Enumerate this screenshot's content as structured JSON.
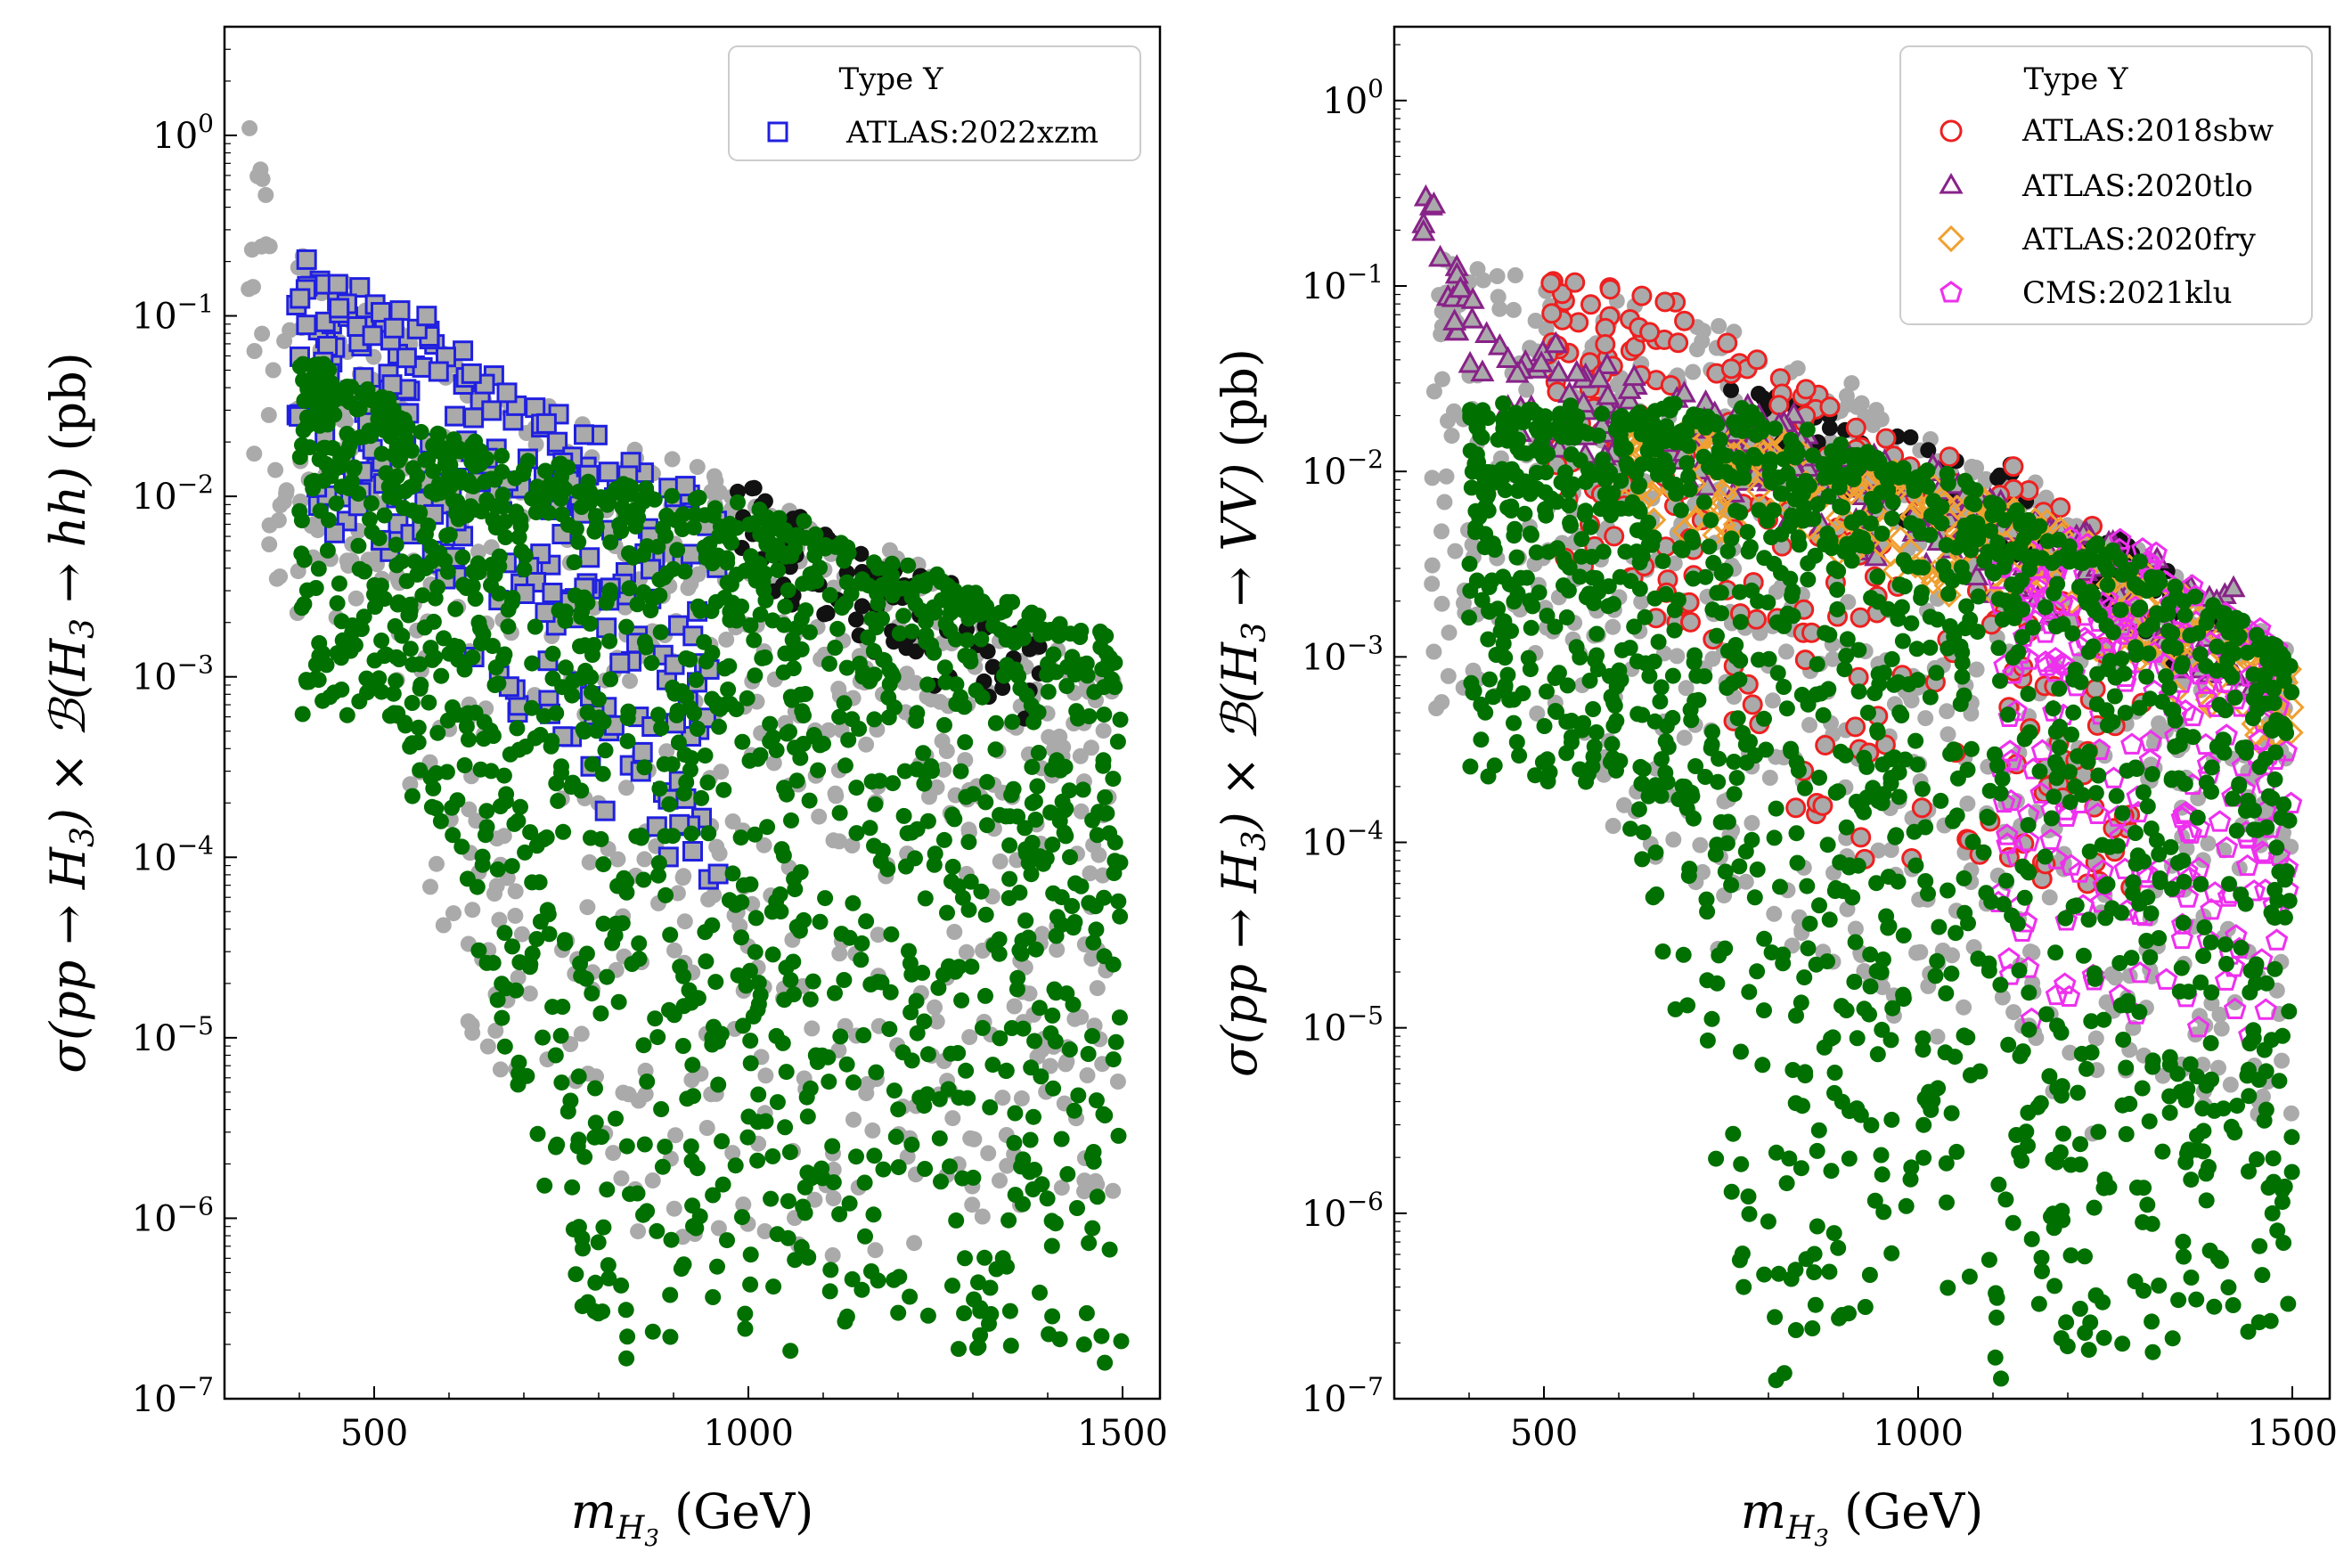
{
  "chart_data": [
    {
      "type": "scatter",
      "xlabel": "m_{H_3} (GeV)",
      "ylabel": "σ(pp → H_3) × B(H_3 → hh) (pb)",
      "xlim": [
        300,
        1550
      ],
      "ylim": [
        1e-07,
        4
      ],
      "y_scale": "log",
      "x_ticks": [
        500,
        1000,
        1500
      ],
      "y_ticks": [
        "10^0",
        "10^-1",
        "10^-2",
        "10^-3",
        "10^-4",
        "10^-5",
        "10^-6",
        "10^-7"
      ],
      "legend": {
        "title": "Type Y",
        "position": "top-right",
        "entries": [
          "ATLAS:2022xzm"
        ]
      },
      "series": [
        {
          "name": "ATLAS:2022xzm",
          "marker": "square",
          "color": "#2020e0",
          "trend": {
            "x_range": [
              395,
              960
            ],
            "upper_edge": [
              [
                395,
                0.2
              ],
              [
                500,
                0.14
              ],
              [
                600,
                0.07
              ],
              [
                700,
                0.035
              ],
              [
                800,
                0.022
              ],
              [
                900,
                0.012
              ],
              [
                960,
                0.008
              ]
            ],
            "lower_edge": [
              [
                500,
                0.006
              ],
              [
                600,
                0.002
              ],
              [
                700,
                0.0006
              ],
              [
                800,
                0.0002
              ],
              [
                900,
                5e-05
              ]
            ]
          }
        },
        {
          "marker": "circle",
          "color": "#aaaaaa",
          "trend": {
            "x_range": [
              330,
              1500
            ],
            "upper_edge": [
              [
                330,
                1.3
              ],
              [
                380,
                0.25
              ],
              [
                500,
                0.1
              ],
              [
                700,
                0.04
              ],
              [
                1000,
                0.01
              ],
              [
                1300,
                0.003
              ],
              [
                1500,
                0.001
              ]
            ],
            "lower_edge": [
              [
                500,
                0.002
              ],
              [
                600,
                1e-05
              ],
              [
                800,
                1e-06
              ],
              [
                1000,
                5e-07
              ],
              [
                1500,
                1e-06
              ]
            ]
          }
        },
        {
          "marker": "circle",
          "color": "#111111",
          "trend": {
            "x_range": [
              980,
              1400
            ],
            "upper_edge": [
              [
                1000,
                0.011
              ],
              [
                1200,
                0.004
              ],
              [
                1400,
                0.0015
              ]
            ]
          }
        },
        {
          "marker": "circle",
          "color": "#007000",
          "trend": {
            "x_range": [
              400,
              1500
            ],
            "upper_edge": [
              [
                400,
                0.06
              ],
              [
                600,
                0.02
              ],
              [
                800,
                0.012
              ],
              [
                1000,
                0.008
              ],
              [
                1200,
                0.004
              ],
              [
                1500,
                0.0015
              ]
            ],
            "lower_edge": [
              [
                500,
                0.0006
              ],
              [
                600,
                0.0001
              ],
              [
                800,
                1.5e-07
              ],
              [
                1000,
                2e-07
              ],
              [
                1380,
                1.7e-07
              ]
            ]
          }
        }
      ]
    },
    {
      "type": "scatter",
      "xlabel": "m_{H_3} (GeV)",
      "ylabel": "σ(pp → H_3) × B(H_3 → VV) (pb)",
      "xlim": [
        300,
        1550
      ],
      "ylim": [
        1e-07,
        2.5
      ],
      "y_scale": "log",
      "x_ticks": [
        500,
        1000,
        1500
      ],
      "y_ticks": [
        "10^0",
        "10^-1",
        "10^-2",
        "10^-3",
        "10^-4",
        "10^-5",
        "10^-6",
        "10^-7"
      ],
      "legend": {
        "title": "Type Y",
        "position": "top-right",
        "entries": [
          "ATLAS:2018sbw",
          "ATLAS:2020tlo",
          "ATLAS:2020fry",
          "CMS:2021klu"
        ]
      },
      "series": [
        {
          "name": "ATLAS:2018sbw",
          "marker": "circle-open",
          "color": "#ee2020",
          "trend": {
            "x_range": [
              500,
              1300
            ],
            "upper_edge": [
              [
                520,
                0.12
              ],
              [
                700,
                0.07
              ],
              [
                900,
                0.02
              ],
              [
                1100,
                0.01
              ],
              [
                1300,
                0.004
              ]
            ],
            "lower_edge": [
              [
                600,
                0.003
              ],
              [
                800,
                0.0002
              ],
              [
                1000,
                5e-05
              ]
            ]
          }
        },
        {
          "name": "ATLAS:2020tlo",
          "marker": "triangle-open",
          "color": "#882288",
          "trend": {
            "x_range": [
              330,
              1450
            ],
            "upper_edge": [
              [
                330,
                0.5
              ],
              [
                370,
                0.15
              ],
              [
                450,
                0.05
              ],
              [
                800,
                0.02
              ],
              [
                1200,
                0.005
              ],
              [
                1450,
                0.002
              ]
            ]
          }
        },
        {
          "name": "ATLAS:2020fry",
          "marker": "diamond-open",
          "color": "#f0a030",
          "trend": {
            "x_range": [
              600,
              1500
            ],
            "upper_edge": [
              [
                800,
                0.015
              ],
              [
                1200,
                0.005
              ],
              [
                1500,
                0.0008
              ]
            ]
          }
        },
        {
          "name": "CMS:2021klu",
          "marker": "pentagon-open",
          "color": "#ee30ee",
          "trend": {
            "x_range": [
              1100,
              1500
            ],
            "upper_edge": [
              [
                1300,
                0.004
              ],
              [
                1500,
                0.001
              ]
            ],
            "lower_edge": [
              [
                1400,
                1e-05
              ]
            ]
          }
        },
        {
          "marker": "circle",
          "color": "#aaaaaa",
          "trend": {
            "x_range": [
              350,
              1500
            ],
            "upper_edge": [
              [
                350,
                0.15
              ],
              [
                500,
                0.1
              ],
              [
                800,
                0.05
              ],
              [
                1100,
                0.01
              ],
              [
                1500,
                0.001
              ]
            ],
            "lower_edge": [
              [
                500,
                0.0005
              ],
              [
                700,
                3e-05
              ],
              [
                1000,
                1e-05
              ],
              [
                1200,
                3e-06
              ]
            ]
          }
        },
        {
          "marker": "circle",
          "color": "#111111",
          "trend": {
            "x_range": [
              750,
              1400
            ],
            "upper_edge": [
              [
                800,
                0.03
              ],
              [
                1100,
                0.01
              ],
              [
                1400,
                0.002
              ]
            ]
          }
        },
        {
          "marker": "circle",
          "color": "#007000",
          "trend": {
            "x_range": [
              400,
              1500
            ],
            "upper_edge": [
              [
                400,
                0.02
              ],
              [
                700,
                0.02
              ],
              [
                1000,
                0.01
              ],
              [
                1300,
                0.003
              ],
              [
                1500,
                0.001
              ]
            ],
            "lower_edge": [
              [
                600,
                0.0002
              ],
              [
                700,
                5e-06
              ],
              [
                800,
                1e-07
              ],
              [
                1000,
                5e-07
              ],
              [
                1100,
                1e-07
              ],
              [
                1380,
                2e-07
              ]
            ]
          }
        }
      ]
    }
  ]
}
